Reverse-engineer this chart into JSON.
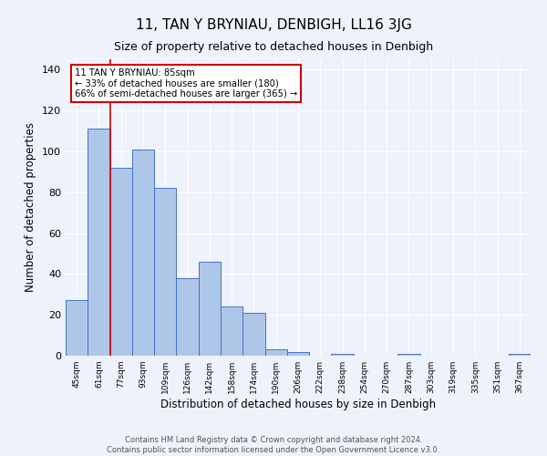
{
  "title": "11, TAN Y BRYNIAU, DENBIGH, LL16 3JG",
  "subtitle": "Size of property relative to detached houses in Denbigh",
  "xlabel": "Distribution of detached houses by size in Denbigh",
  "ylabel": "Number of detached properties",
  "bar_labels": [
    "45sqm",
    "61sqm",
    "77sqm",
    "93sqm",
    "109sqm",
    "126sqm",
    "142sqm",
    "158sqm",
    "174sqm",
    "190sqm",
    "206sqm",
    "222sqm",
    "238sqm",
    "254sqm",
    "270sqm",
    "287sqm",
    "303sqm",
    "319sqm",
    "335sqm",
    "351sqm",
    "367sqm"
  ],
  "bar_heights": [
    27,
    111,
    92,
    101,
    82,
    38,
    46,
    24,
    21,
    3,
    2,
    0,
    1,
    0,
    0,
    1,
    0,
    0,
    0,
    0,
    1
  ],
  "bar_color": "#aec6e8",
  "bar_edge_color": "#4472c4",
  "background_color": "#eef2fb",
  "grid_color": "#ffffff",
  "annotation_text": "11 TAN Y BRYNIAU: 85sqm\n← 33% of detached houses are smaller (180)\n66% of semi-detached houses are larger (365) →",
  "annotation_box_color": "#ffffff",
  "annotation_box_edge": "#cc0000",
  "red_line_x": 1.5,
  "ylim": [
    0,
    145
  ],
  "yticks": [
    0,
    20,
    40,
    60,
    80,
    100,
    120,
    140
  ],
  "footer": "Contains HM Land Registry data © Crown copyright and database right 2024.\nContains public sector information licensed under the Open Government Licence v3.0.",
  "title_fontsize": 11,
  "subtitle_fontsize": 9,
  "ylabel_fontsize": 8.5,
  "xlabel_fontsize": 8.5
}
